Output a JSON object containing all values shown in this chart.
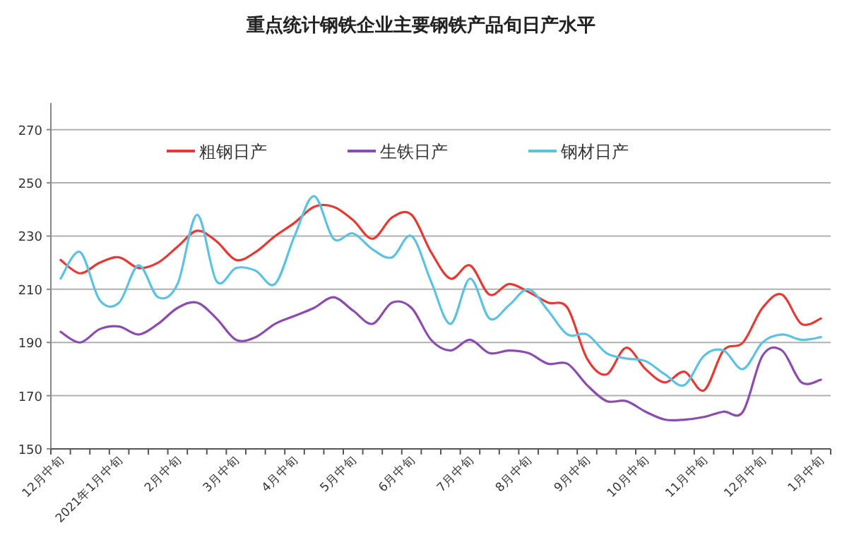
{
  "chart_data": {
    "type": "line",
    "title": "重点统计钢铁企业主要钢铁产品旬日产水平",
    "categories": [
      "12月中旬",
      null,
      null,
      "2021年1月中旬",
      null,
      null,
      "2月中旬",
      null,
      null,
      "3月中旬",
      null,
      null,
      "4月中旬",
      null,
      null,
      "5月中旬",
      null,
      null,
      "6月中旬",
      null,
      null,
      "7月中旬",
      null,
      null,
      "8月中旬",
      null,
      null,
      "9月中旬",
      null,
      null,
      "10月中旬",
      null,
      null,
      "11月中旬",
      null,
      null,
      "12月中旬",
      null,
      null,
      "1月中旬"
    ],
    "series": [
      {
        "name": "粗钢日产",
        "color": "#e53a34",
        "values": [
          221,
          216,
          220,
          222,
          218,
          220,
          226,
          232,
          228,
          221,
          224,
          230,
          235,
          241,
          241,
          236,
          229,
          237,
          238,
          224,
          214,
          219,
          208,
          212,
          209,
          205,
          203,
          184,
          178,
          188,
          180,
          175,
          179,
          172,
          187,
          190,
          203,
          208,
          197,
          199
        ]
      },
      {
        "name": "生铁日产",
        "color": "#8a4cad",
        "values": [
          194,
          190,
          195,
          196,
          193,
          197,
          203,
          205,
          199,
          191,
          192,
          197,
          200,
          203,
          207,
          202,
          197,
          205,
          203,
          191,
          187,
          191,
          186,
          187,
          186,
          182,
          182,
          174,
          168,
          168,
          164,
          161,
          161,
          162,
          164,
          164,
          185,
          187,
          175,
          176
        ]
      },
      {
        "name": "钢材日产",
        "color": "#5bc3e0",
        "values": [
          214,
          224,
          206,
          205,
          219,
          207,
          212,
          238,
          213,
          218,
          217,
          212,
          230,
          245,
          229,
          231,
          225,
          222,
          230,
          213,
          197,
          214,
          199,
          204,
          210,
          202,
          193,
          193,
          186,
          184,
          183,
          178,
          174,
          185,
          187,
          180,
          190,
          193,
          191,
          192
        ]
      }
    ],
    "ylim": [
      150,
      280
    ],
    "yticks": [
      150,
      170,
      190,
      210,
      230,
      250,
      270
    ],
    "grid": "y",
    "legend": "top",
    "marker": "none",
    "line_style": "solid"
  }
}
